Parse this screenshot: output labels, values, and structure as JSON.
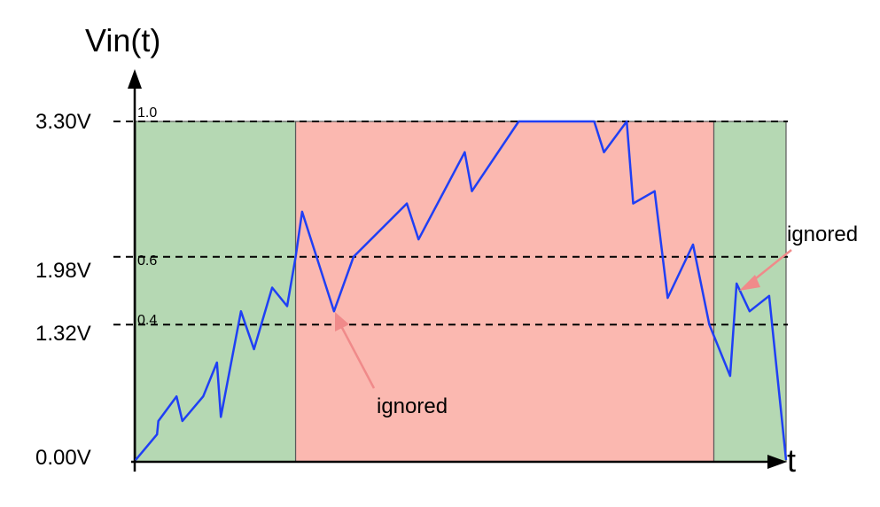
{
  "diagram": {
    "y_axis_label": "Vin(t)",
    "x_axis_label": "t",
    "thresholds": [
      {
        "voltage_label": "3.30V",
        "fraction_label": "1.0",
        "value": 3.3
      },
      {
        "voltage_label": "1.98V",
        "fraction_label": "0.6",
        "value": 1.98
      },
      {
        "voltage_label": "1.32V",
        "fraction_label": "0.4",
        "value": 1.32
      }
    ],
    "zero_label": "0.00V",
    "regions": [
      {
        "name": "low-region-1",
        "color": "#b5d8b3",
        "t_start": 0,
        "t_end": 0.246
      },
      {
        "name": "high-region",
        "color": "#fbb8b0",
        "t_start": 0.246,
        "t_end": 0.889
      },
      {
        "name": "low-region-2",
        "color": "#b5d8b3",
        "t_start": 0.889,
        "t_end": 1.0
      }
    ],
    "annotations": [
      {
        "text": "ignored",
        "name": "ignored-label-lower"
      },
      {
        "text": "ignored",
        "name": "ignored-label-upper"
      }
    ],
    "signal_color": "#1f3ff5",
    "arrow_color": "#f08a8a"
  },
  "chart_data": {
    "type": "line",
    "xlabel": "t",
    "ylabel": "Vin(t)",
    "ylim": [
      0,
      3.3
    ],
    "x": [
      0,
      0.033,
      0.035,
      0.063,
      0.072,
      0.104,
      0.125,
      0.131,
      0.162,
      0.182,
      0.21,
      0.233,
      0.246,
      0.256,
      0.305,
      0.335,
      0.417,
      0.435,
      0.506,
      0.517,
      0.589,
      0.705,
      0.72,
      0.755,
      0.765,
      0.798,
      0.818,
      0.857,
      0.882,
      0.914,
      0.924,
      0.944,
      0.974,
      1.0
    ],
    "series": [
      {
        "values": [
          0,
          0.25,
          0.38,
          0.62,
          0.38,
          0.62,
          0.95,
          0.42,
          1.45,
          1.08,
          1.68,
          1.5,
          1.98,
          2.42,
          1.45,
          1.98,
          2.5,
          2.15,
          3.0,
          2.62,
          3.3,
          3.3,
          3.0,
          3.3,
          2.5,
          2.62,
          1.58,
          2.1,
          1.32,
          0.82,
          1.72,
          1.45,
          1.6,
          0.0
        ]
      }
    ]
  }
}
